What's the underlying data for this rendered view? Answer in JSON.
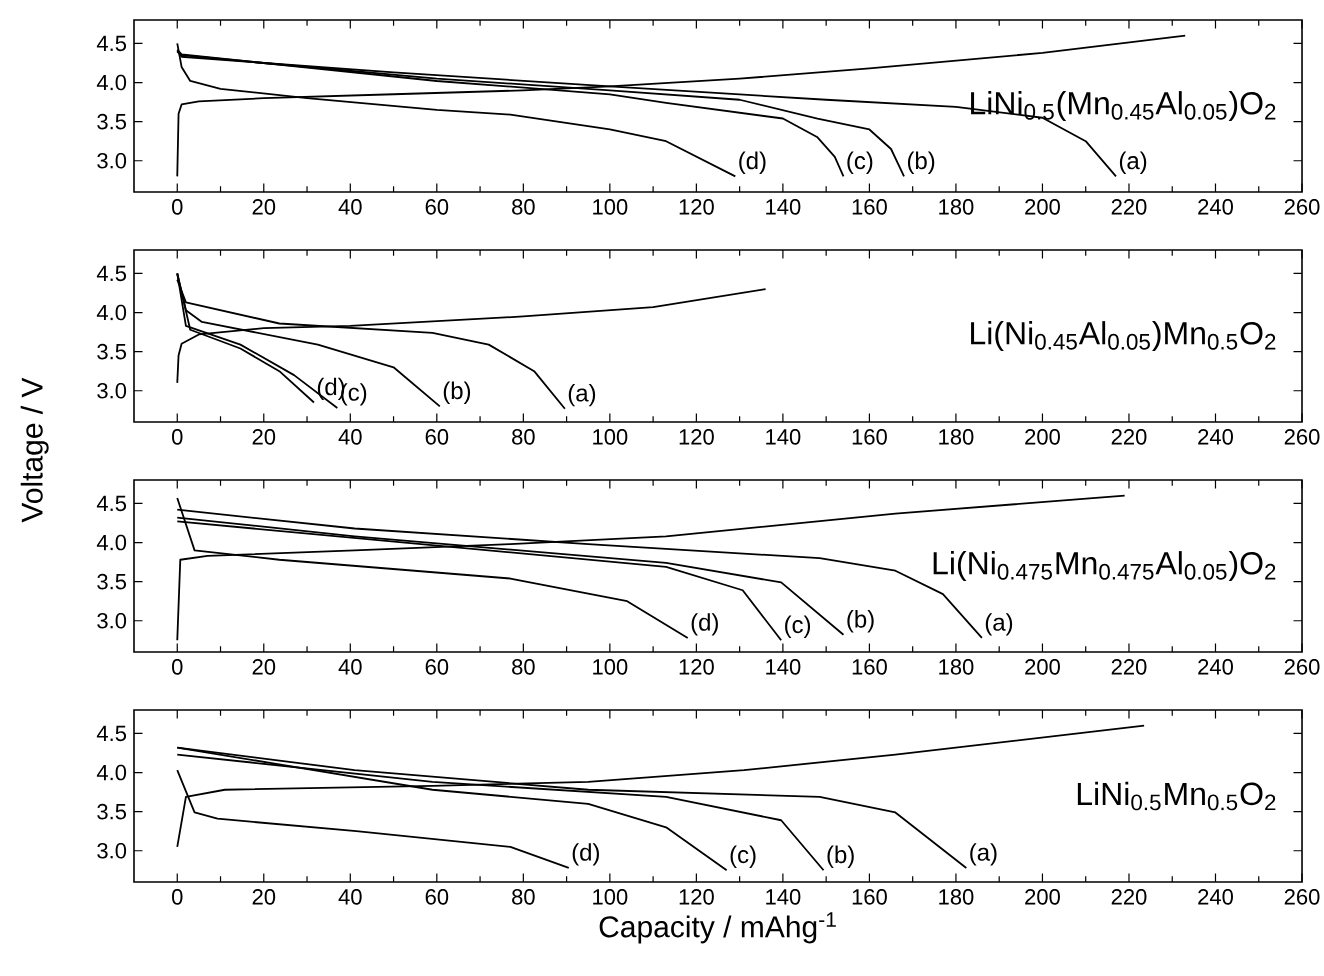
{
  "chart_data": [
    {
      "type": "line",
      "title": "LiNi$_{0.5}$(Mn$_{0.45}$Al$_{0.05}$)O$_{2}$",
      "xlim": [
        -10,
        260
      ],
      "ylim": [
        2.6,
        4.8
      ],
      "xticks": [
        0,
        20,
        40,
        60,
        80,
        100,
        120,
        140,
        160,
        180,
        200,
        220,
        240,
        260
      ],
      "yticks": [
        {
          "value": 3,
          "label": "3.0"
        },
        {
          "value": 3.5,
          "label": "3.5"
        },
        {
          "value": 4,
          "label": "4.0"
        },
        {
          "value": 4.5,
          "label": "4.5"
        }
      ],
      "series": [
        {
          "color": "#000000",
          "x": [
            0,
            0.3,
            1,
            5,
            20,
            50,
            80,
            100,
            130,
            160,
            200,
            233
          ],
          "values": [
            2.8,
            3.6,
            3.72,
            3.76,
            3.8,
            3.85,
            3.9,
            3.95,
            4.05,
            4.18,
            4.38,
            4.6
          ]
        },
        {
          "color": "#000000",
          "x": [
            0,
            1,
            20,
            50,
            100,
            150,
            180,
            200,
            210,
            217
          ],
          "values": [
            4.4,
            4.33,
            4.25,
            4.13,
            3.95,
            3.78,
            3.69,
            3.55,
            3.25,
            2.8
          ]
        },
        {
          "color": "#000000",
          "x": [
            0,
            1,
            20,
            60,
            100,
            130,
            148,
            160,
            165,
            168
          ],
          "values": [
            4.4,
            4.35,
            4.25,
            4.05,
            3.9,
            3.78,
            3.54,
            3.4,
            3.15,
            2.8
          ]
        },
        {
          "color": "#000000",
          "x": [
            0,
            1,
            20,
            60,
            100,
            113,
            140,
            148,
            152,
            154
          ],
          "values": [
            4.42,
            4.36,
            4.25,
            4.02,
            3.85,
            3.74,
            3.54,
            3.3,
            3.05,
            2.8
          ]
        },
        {
          "color": "#000000",
          "x": [
            0,
            1,
            3,
            10,
            30,
            60,
            77,
            100,
            113,
            129
          ],
          "values": [
            4.5,
            4.2,
            4.02,
            3.92,
            3.8,
            3.65,
            3.59,
            3.4,
            3.25,
            2.8
          ]
        }
      ],
      "annotations": [
        {
          "text": "(a)",
          "x": 217,
          "y": 2.8
        },
        {
          "text": "(b)",
          "x": 168,
          "y": 2.8
        },
        {
          "text": "(c)",
          "x": 154,
          "y": 2.8
        },
        {
          "text": "(d)",
          "x": 129,
          "y": 2.8
        }
      ]
    },
    {
      "type": "line",
      "title": "Li(Ni$_{0.45}$Al$_{0.05}$)Mn$_{0.5}$O$_{2}$",
      "ylabel": "Voltage / V",
      "xlim": [
        -10,
        260
      ],
      "ylim": [
        2.6,
        4.8
      ],
      "xticks": [
        0,
        20,
        40,
        60,
        80,
        100,
        120,
        140,
        160,
        180,
        200,
        220,
        240,
        260
      ],
      "yticks": [
        {
          "value": 3,
          "label": "3.0"
        },
        {
          "value": 3.5,
          "label": "3.5"
        },
        {
          "value": 4,
          "label": "4.0"
        },
        {
          "value": 4.5,
          "label": "4.5"
        }
      ],
      "series": [
        {
          "color": "#000000",
          "x": [
            0,
            0.3,
            1,
            5,
            20,
            40,
            80,
            110,
            136
          ],
          "values": [
            3.1,
            3.45,
            3.6,
            3.72,
            3.8,
            3.83,
            3.95,
            4.07,
            4.3
          ]
        },
        {
          "color": "#000000",
          "x": [
            0,
            2,
            23.6,
            59,
            72,
            82.5,
            89.6
          ],
          "values": [
            4.42,
            4.13,
            3.86,
            3.74,
            3.59,
            3.25,
            2.77
          ]
        },
        {
          "color": "#000000",
          "x": [
            0,
            2,
            5.7,
            32.5,
            50,
            60.7
          ],
          "values": [
            4.5,
            4.03,
            3.88,
            3.59,
            3.3,
            2.8
          ]
        },
        {
          "color": "#000000",
          "x": [
            0,
            2,
            14.6,
            27,
            37
          ],
          "values": [
            4.5,
            3.83,
            3.59,
            3.2,
            2.78
          ]
        },
        {
          "color": "#000000",
          "x": [
            0,
            3,
            14.6,
            23.6,
            31.6
          ],
          "values": [
            4.5,
            3.78,
            3.54,
            3.25,
            2.85
          ]
        }
      ],
      "annotations": [
        {
          "text": "(a)",
          "x": 89.6,
          "y": 2.77
        },
        {
          "text": "(b)",
          "x": 60.7,
          "y": 2.8
        },
        {
          "text": "(c)",
          "x": 37,
          "y": 2.78
        },
        {
          "text": "(d)",
          "x": 31.6,
          "y": 2.85
        }
      ]
    },
    {
      "type": "line",
      "title": "Li(Ni$_{0.475}$Mn$_{0.475}$Al$_{0.05}$)O$_{2}$",
      "xlim": [
        -10,
        260
      ],
      "ylim": [
        2.6,
        4.8
      ],
      "xticks": [
        0,
        20,
        40,
        60,
        80,
        100,
        120,
        140,
        160,
        180,
        200,
        220,
        240,
        260
      ],
      "yticks": [
        {
          "value": 3,
          "label": "3.0"
        },
        {
          "value": 3.5,
          "label": "3.5"
        },
        {
          "value": 4,
          "label": "4.0"
        },
        {
          "value": 4.5,
          "label": "4.5"
        }
      ],
      "series": [
        {
          "color": "#000000",
          "x": [
            0,
            0.7,
            7,
            41,
            77,
            113,
            166,
            219
          ],
          "values": [
            2.75,
            3.78,
            3.83,
            3.9,
            3.98,
            4.08,
            4.37,
            4.6
          ]
        },
        {
          "color": "#000000",
          "x": [
            0,
            41,
            95,
            148.5,
            166,
            177,
            186
          ],
          "values": [
            4.42,
            4.18,
            3.98,
            3.8,
            3.64,
            3.34,
            2.78
          ]
        },
        {
          "color": "#000000",
          "x": [
            0,
            41,
            113,
            139.6,
            154
          ],
          "values": [
            4.32,
            4.08,
            3.74,
            3.49,
            2.82
          ]
        },
        {
          "color": "#000000",
          "x": [
            0,
            113,
            130.7,
            139.6
          ],
          "values": [
            4.27,
            3.69,
            3.39,
            2.75
          ]
        },
        {
          "color": "#000000",
          "x": [
            0,
            4,
            23.6,
            77,
            104,
            118
          ],
          "values": [
            4.57,
            3.9,
            3.78,
            3.54,
            3.25,
            2.78
          ]
        }
      ],
      "annotations": [
        {
          "text": "(a)",
          "x": 186,
          "y": 2.78
        },
        {
          "text": "(b)",
          "x": 154,
          "y": 2.82
        },
        {
          "text": "(c)",
          "x": 139.6,
          "y": 2.75
        },
        {
          "text": "(d)",
          "x": 118,
          "y": 2.78
        }
      ]
    },
    {
      "type": "line",
      "title": "LiNi$_{0.5}$Mn$_{0.5}$O$_{2}$",
      "xlabel": "Capacity / mAhg$^{-1}$",
      "xlim": [
        -10,
        260
      ],
      "ylim": [
        2.6,
        4.8
      ],
      "xticks": [
        0,
        20,
        40,
        60,
        80,
        100,
        120,
        140,
        160,
        180,
        200,
        220,
        240,
        260
      ],
      "yticks": [
        {
          "value": 3,
          "label": "3.0"
        },
        {
          "value": 3.5,
          "label": "3.5"
        },
        {
          "value": 4,
          "label": "4.0"
        },
        {
          "value": 4.5,
          "label": "4.5"
        }
      ],
      "series": [
        {
          "color": "#000000",
          "x": [
            0,
            2,
            11,
            59,
            95,
            131,
            166,
            223.5
          ],
          "values": [
            3.05,
            3.69,
            3.78,
            3.83,
            3.88,
            4.03,
            4.23,
            4.6
          ]
        },
        {
          "color": "#000000",
          "x": [
            0,
            41,
            95,
            148.5,
            166,
            182.4
          ],
          "values": [
            4.32,
            4.03,
            3.78,
            3.69,
            3.49,
            2.78
          ]
        },
        {
          "color": "#000000",
          "x": [
            0,
            59,
            113,
            139.6,
            149.4
          ],
          "values": [
            4.23,
            3.88,
            3.69,
            3.39,
            2.75
          ]
        },
        {
          "color": "#000000",
          "x": [
            0,
            59,
            95,
            113,
            127
          ],
          "values": [
            4.32,
            3.78,
            3.6,
            3.3,
            2.75
          ]
        },
        {
          "color": "#000000",
          "x": [
            0,
            4,
            9.3,
            41.4,
            77,
            90.5
          ],
          "values": [
            4.03,
            3.49,
            3.41,
            3.25,
            3.05,
            2.78
          ]
        }
      ],
      "annotations": [
        {
          "text": "(a)",
          "x": 182.4,
          "y": 2.78
        },
        {
          "text": "(b)",
          "x": 149.4,
          "y": 2.75
        },
        {
          "text": "(c)",
          "x": 127,
          "y": 2.75
        },
        {
          "text": "(d)",
          "x": 90.5,
          "y": 2.78
        }
      ]
    }
  ]
}
